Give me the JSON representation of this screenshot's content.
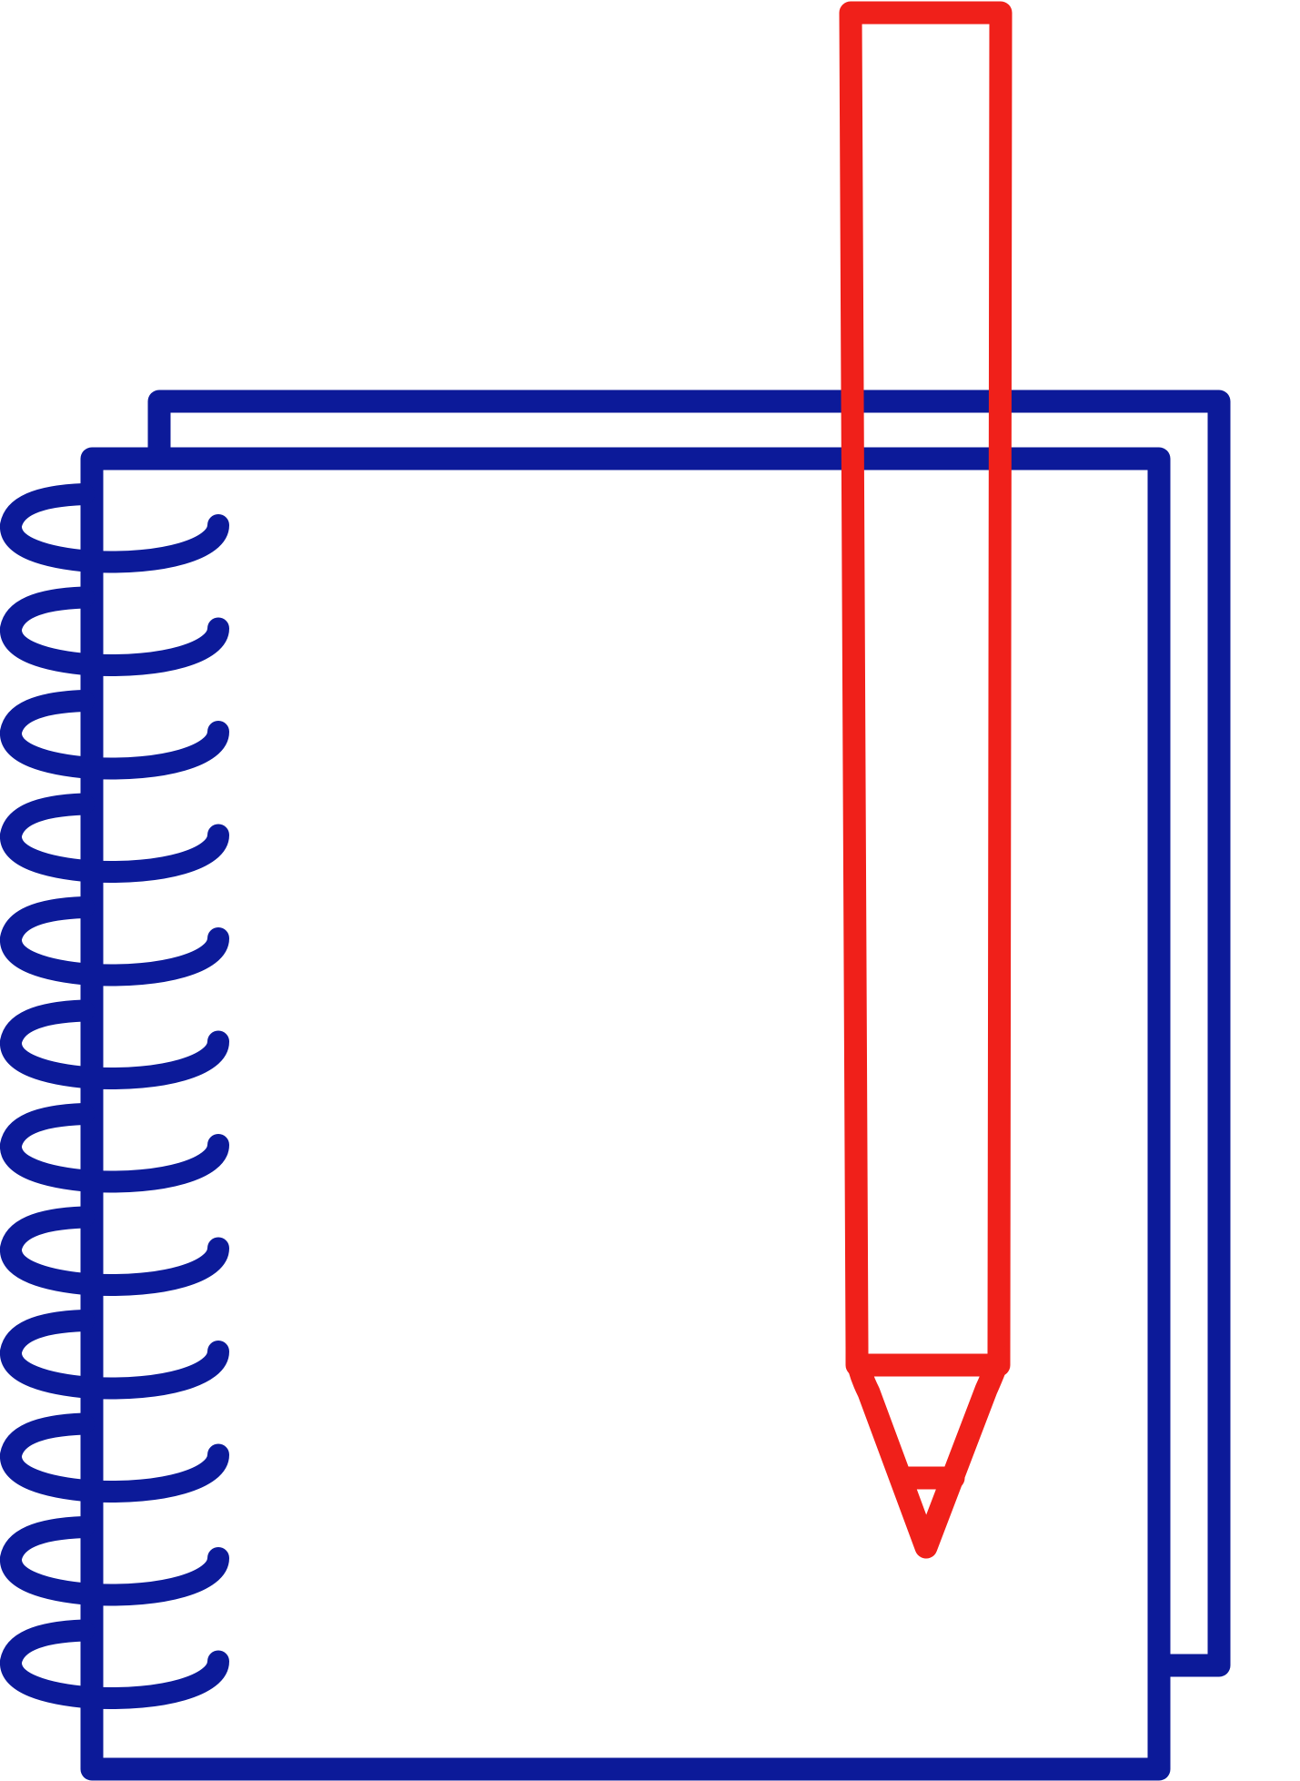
{
  "illustration": {
    "subject": "notebook-and-pencil-icon",
    "colors": {
      "notebook_outline": "#0c1a99",
      "pencil_outline": "#f0201a",
      "background": "#ffffff"
    },
    "spiral_ring_count": 12
  }
}
